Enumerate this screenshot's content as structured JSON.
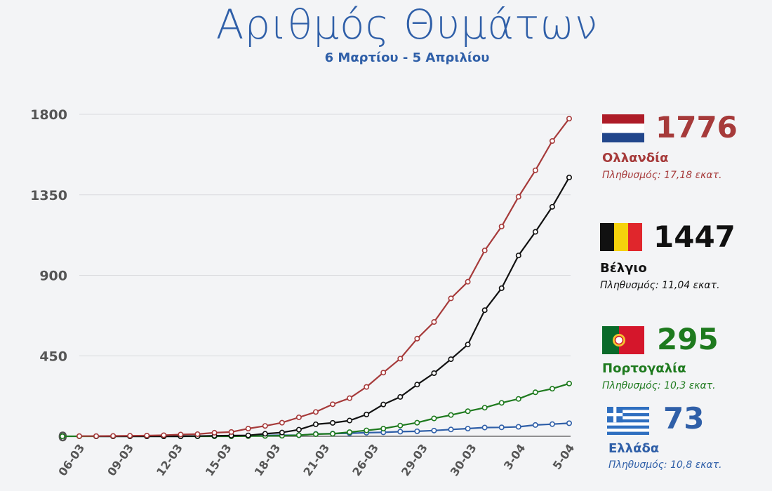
{
  "header": {
    "title": "Αριθμός Θυμάτων",
    "subtitle": "6 Μαρτίου - 5 Απριλίου"
  },
  "chart_data": {
    "type": "line",
    "title": "Αριθμός Θυμάτων",
    "subtitle": "6 Μαρτίου - 5 Απριλίου",
    "xlabel": "",
    "ylabel": "",
    "ylim": [
      0,
      1800
    ],
    "y_ticks": [
      0,
      450,
      900,
      1350,
      1800
    ],
    "x_tick_labels": [
      "06-03",
      "09-03",
      "12-03",
      "15-03",
      "18-03",
      "21-03",
      "26-03",
      "29-03",
      "30-03",
      "3-04",
      "5-04"
    ],
    "grid": "horizontal",
    "series": [
      {
        "name": "Ολλανδία",
        "color": "#a63a3a",
        "values": [
          1,
          1,
          2,
          3,
          4,
          6,
          10,
          12,
          20,
          24,
          43,
          58,
          76,
          106,
          136,
          179,
          213,
          276,
          356,
          434,
          546,
          639,
          771,
          864,
          1039,
          1173,
          1339,
          1487,
          1651,
          1776
        ]
      },
      {
        "name": "Βέλγιο",
        "color": "#111111",
        "values": [
          0,
          0,
          0,
          0,
          0,
          0,
          1,
          3,
          4,
          5,
          14,
          21,
          37,
          67,
          75,
          88,
          122,
          178,
          220,
          289,
          353,
          431,
          513,
          705,
          828,
          1011,
          1143,
          1283,
          1447
        ]
      },
      {
        "name": "Πορτογαλία",
        "color": "#1e7a1e",
        "values": [
          0,
          0,
          0,
          0,
          0,
          0,
          0,
          0,
          0,
          0,
          0,
          1,
          2,
          3,
          6,
          12,
          14,
          23,
          33,
          43,
          60,
          76,
          100,
          119,
          140,
          160,
          187,
          209,
          246,
          266,
          295
        ]
      },
      {
        "name": "Ελλάδα",
        "color": "#2f5fa8",
        "values": [
          0,
          0,
          0,
          0,
          0,
          0,
          1,
          1,
          3,
          4,
          5,
          6,
          6,
          13,
          15,
          17,
          20,
          22,
          26,
          28,
          32,
          38,
          43,
          49,
          50,
          53,
          63,
          68,
          73
        ]
      }
    ]
  },
  "legend": {
    "netherlands": {
      "value": "1776",
      "name": "Ολλανδία",
      "population": "Πληθυσμός: 17,18 εκατ.",
      "flag_icon": "netherlands-flag-icon",
      "color": "#a63a3a"
    },
    "belgium": {
      "value": "1447",
      "name": "Βέλγιο",
      "population": "Πληθυσμός: 11,04 εκατ.",
      "flag_icon": "belgium-flag-icon",
      "color": "#111111"
    },
    "portugal": {
      "value": "295",
      "name": "Πορτογαλία",
      "population": "Πληθυσμός: 10,3 εκατ.",
      "flag_icon": "portugal-flag-icon",
      "color": "#1e7a1e"
    },
    "greece": {
      "value": "73",
      "name": "Ελλάδα",
      "population": "Πληθυσμός: 10,8 εκατ.",
      "flag_icon": "greece-flag-icon",
      "color": "#2f5fa8"
    }
  }
}
